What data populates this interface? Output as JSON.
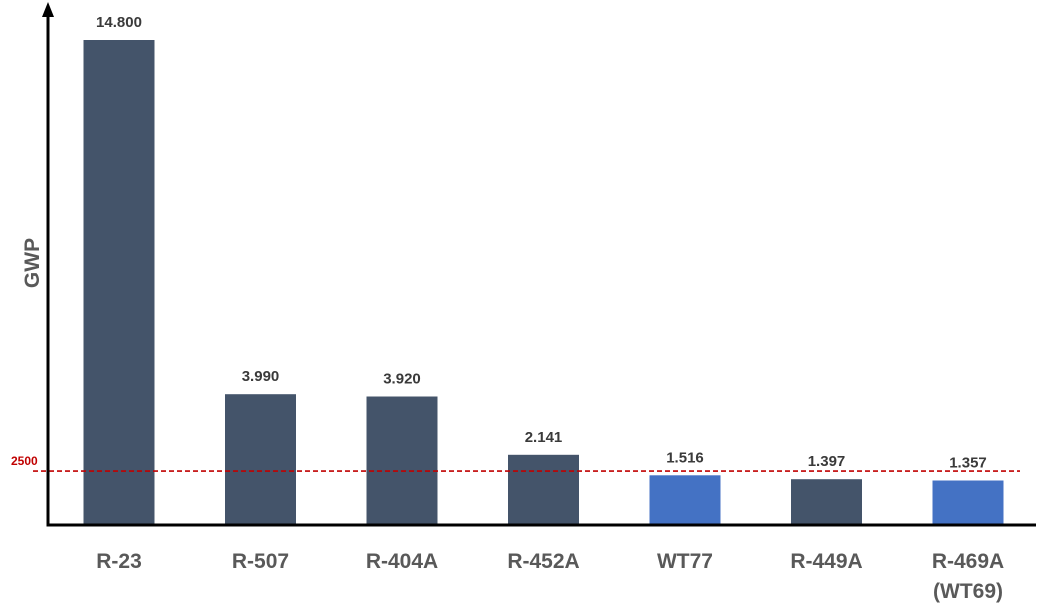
{
  "chart_data": {
    "type": "bar",
    "title": "",
    "xlabel": "",
    "ylabel": "GWP",
    "ylim": [
      0,
      15900
    ],
    "grid": false,
    "legend": "none",
    "categories": [
      "R-23",
      "R-507",
      "R-404A",
      "R-452A",
      "WT77",
      "R-449A",
      "R-469A (WT69)"
    ],
    "category_lines": [
      [
        "R-23"
      ],
      [
        "R-507"
      ],
      [
        "R-404A"
      ],
      [
        "R-452A"
      ],
      [
        "WT77"
      ],
      [
        "R-449A"
      ],
      [
        "R-469A",
        "(WT69)"
      ]
    ],
    "values": [
      14800,
      3990,
      3920,
      2141,
      1516,
      1397,
      1357
    ],
    "value_labels": [
      "14.800",
      "3.990",
      "3.920",
      "2.141",
      "1.516",
      "1.397",
      "1.357"
    ],
    "bar_colors": [
      "#44546a",
      "#44546a",
      "#44546a",
      "#44546a",
      "#4472c4",
      "#44546a",
      "#4472c4"
    ],
    "reference_line": {
      "value": 2500,
      "label": "2500",
      "color": "#c00000",
      "style": "dashed"
    },
    "axis_color": "#000000"
  }
}
